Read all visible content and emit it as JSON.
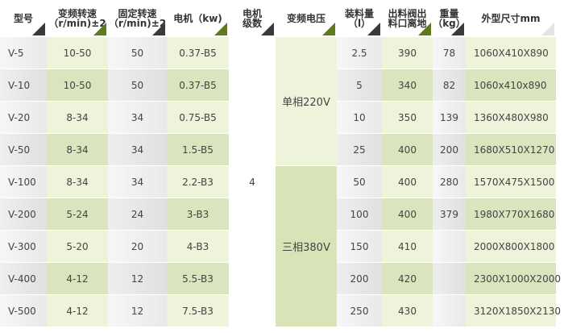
{
  "headers": [
    {
      "l1": "型号",
      "l2": "",
      "tri": "dark"
    },
    {
      "l1": "变频转速",
      "l2": "（r/min)±2",
      "tri": "green"
    },
    {
      "l1": "固定转速",
      "l2": "（r/min)±2",
      "tri": "dark"
    },
    {
      "l1": "电机（kw)",
      "l2": "",
      "tri": "green"
    },
    {
      "l1": "电机",
      "l2": "级数",
      "tri": "dark"
    },
    {
      "l1": "变频电压",
      "l2": "",
      "tri": "green"
    },
    {
      "l1": "装料量",
      "l2": "（l）",
      "tri": "dark"
    },
    {
      "l1": "出料阀出",
      "l2": "料口离地",
      "tri": "green"
    },
    {
      "l1": "重量",
      "l2": "（kg）",
      "tri": "dark"
    },
    {
      "l1": "外型尺寸mm",
      "l2": "",
      "tri": "light"
    }
  ],
  "poles": "4",
  "voltage": [
    "单相220V",
    "三相380V"
  ],
  "rows": [
    [
      "V-5",
      "10-50",
      "50",
      "0.37-B5",
      "2.5",
      "390",
      "78",
      "1060X410X890"
    ],
    [
      "V-10",
      "10-50",
      "50",
      "0.37-B5",
      "5",
      "340",
      "82",
      "1060x410x890"
    ],
    [
      "V-20",
      "8-34",
      "34",
      "0.75-B5",
      "10",
      "350",
      "139",
      "1360X480X980"
    ],
    [
      "V-50",
      "8-34",
      "34",
      "1.5-B5",
      "25",
      "400",
      "200",
      "1680X510X1270"
    ],
    [
      "V-100",
      "8-34",
      "34",
      "2.2-B3",
      "50",
      "400",
      "280",
      "1570X475X1500"
    ],
    [
      "V-200",
      "5-24",
      "24",
      "3-B3",
      "100",
      "400",
      "379",
      "1980X770X1680"
    ],
    [
      "V-300",
      "5-20",
      "20",
      "4-B3",
      "150",
      "410",
      "",
      "2000X800X1800"
    ],
    [
      "V-400",
      "4-12",
      "12",
      "5.5-B3",
      "200",
      "420",
      "",
      "2300X1000X2000"
    ],
    [
      "V-500",
      "4-12",
      "12",
      "7.5-B3",
      "250",
      "430",
      "",
      "3120X1850X2130"
    ]
  ]
}
